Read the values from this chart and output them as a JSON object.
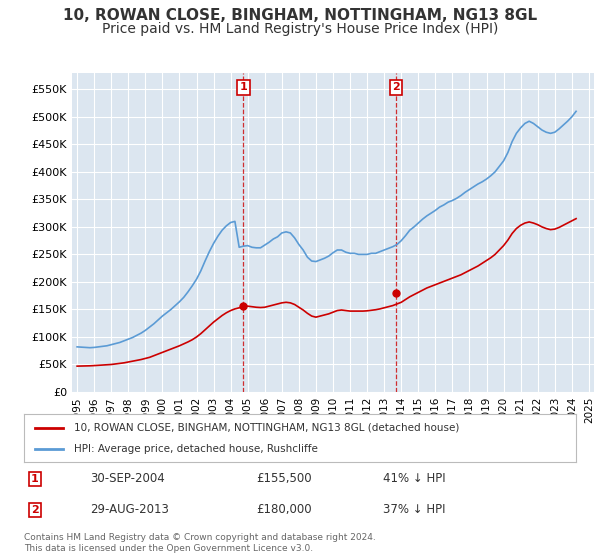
{
  "title": "10, ROWAN CLOSE, BINGHAM, NOTTINGHAM, NG13 8GL",
  "subtitle": "Price paid vs. HM Land Registry's House Price Index (HPI)",
  "title_fontsize": 11,
  "subtitle_fontsize": 10,
  "background_color": "#ffffff",
  "plot_bg_color": "#dce6f0",
  "grid_color": "#ffffff",
  "ylabel_ticks": [
    "£0",
    "£50K",
    "£100K",
    "£150K",
    "£200K",
    "£250K",
    "£300K",
    "£350K",
    "£400K",
    "£450K",
    "£500K",
    "£550K"
  ],
  "ytick_values": [
    0,
    50000,
    100000,
    150000,
    200000,
    250000,
    300000,
    350000,
    400000,
    450000,
    500000,
    550000
  ],
  "ylim": [
    0,
    580000
  ],
  "legend_entry1": "10, ROWAN CLOSE, BINGHAM, NOTTINGHAM, NG13 8GL (detached house)",
  "legend_entry2": "HPI: Average price, detached house, Rushcliffe",
  "sale1_label": "1",
  "sale1_date": "30-SEP-2004",
  "sale1_price": "£155,500",
  "sale1_pct": "41% ↓ HPI",
  "sale2_label": "2",
  "sale2_date": "29-AUG-2013",
  "sale2_price": "£180,000",
  "sale2_pct": "37% ↓ HPI",
  "footnote": "Contains HM Land Registry data © Crown copyright and database right 2024.\nThis data is licensed under the Open Government Licence v3.0.",
  "sale1_color": "#cc0000",
  "sale2_color": "#cc0000",
  "hpi_line_color": "#5b9bd5",
  "price_line_color": "#cc0000",
  "marker_box_color": "#cc0000",
  "sale1_year": 2004.75,
  "sale1_value": 155500,
  "sale2_year": 2013.67,
  "sale2_value": 180000,
  "hpi_years": [
    1995.0,
    1995.25,
    1995.5,
    1995.75,
    1996.0,
    1996.25,
    1996.5,
    1996.75,
    1997.0,
    1997.25,
    1997.5,
    1997.75,
    1998.0,
    1998.25,
    1998.5,
    1998.75,
    1999.0,
    1999.25,
    1999.5,
    1999.75,
    2000.0,
    2000.25,
    2000.5,
    2000.75,
    2001.0,
    2001.25,
    2001.5,
    2001.75,
    2002.0,
    2002.25,
    2002.5,
    2002.75,
    2003.0,
    2003.25,
    2003.5,
    2003.75,
    2004.0,
    2004.25,
    2004.5,
    2004.75,
    2005.0,
    2005.25,
    2005.5,
    2005.75,
    2006.0,
    2006.25,
    2006.5,
    2006.75,
    2007.0,
    2007.25,
    2007.5,
    2007.75,
    2008.0,
    2008.25,
    2008.5,
    2008.75,
    2009.0,
    2009.25,
    2009.5,
    2009.75,
    2010.0,
    2010.25,
    2010.5,
    2010.75,
    2011.0,
    2011.25,
    2011.5,
    2011.75,
    2012.0,
    2012.25,
    2012.5,
    2012.75,
    2013.0,
    2013.25,
    2013.5,
    2013.75,
    2014.0,
    2014.25,
    2014.5,
    2014.75,
    2015.0,
    2015.25,
    2015.5,
    2015.75,
    2016.0,
    2016.25,
    2016.5,
    2016.75,
    2017.0,
    2017.25,
    2017.5,
    2017.75,
    2018.0,
    2018.25,
    2018.5,
    2018.75,
    2019.0,
    2019.25,
    2019.5,
    2019.75,
    2020.0,
    2020.25,
    2020.5,
    2020.75,
    2021.0,
    2021.25,
    2021.5,
    2021.75,
    2022.0,
    2022.25,
    2022.5,
    2022.75,
    2023.0,
    2023.25,
    2023.5,
    2023.75,
    2024.0,
    2024.25
  ],
  "hpi_values": [
    82000,
    81500,
    81000,
    80500,
    81000,
    82000,
    83000,
    84000,
    86000,
    88000,
    90000,
    93000,
    96000,
    99000,
    103000,
    107000,
    112000,
    118000,
    124000,
    131000,
    138000,
    144000,
    150000,
    157000,
    164000,
    172000,
    182000,
    193000,
    205000,
    220000,
    238000,
    255000,
    270000,
    283000,
    294000,
    302000,
    308000,
    310000,
    263000,
    265000,
    266000,
    263000,
    262000,
    262000,
    267000,
    272000,
    278000,
    282000,
    289000,
    291000,
    289000,
    280000,
    268000,
    258000,
    245000,
    238000,
    237000,
    240000,
    243000,
    247000,
    253000,
    258000,
    258000,
    254000,
    252000,
    252000,
    250000,
    250000,
    250000,
    252000,
    252000,
    255000,
    258000,
    261000,
    264000,
    268000,
    275000,
    284000,
    294000,
    300000,
    307000,
    314000,
    320000,
    325000,
    330000,
    336000,
    340000,
    345000,
    348000,
    352000,
    357000,
    363000,
    368000,
    373000,
    378000,
    382000,
    387000,
    393000,
    400000,
    410000,
    420000,
    435000,
    455000,
    470000,
    480000,
    488000,
    492000,
    488000,
    482000,
    476000,
    472000,
    470000,
    472000,
    478000,
    485000,
    492000,
    500000,
    510000
  ],
  "price_years": [
    1995.0,
    1995.25,
    1995.5,
    1995.75,
    1996.0,
    1996.25,
    1996.5,
    1996.75,
    1997.0,
    1997.25,
    1997.5,
    1997.75,
    1998.0,
    1998.25,
    1998.5,
    1998.75,
    1999.0,
    1999.25,
    1999.5,
    1999.75,
    2000.0,
    2000.25,
    2000.5,
    2000.75,
    2001.0,
    2001.25,
    2001.5,
    2001.75,
    2002.0,
    2002.25,
    2002.5,
    2002.75,
    2003.0,
    2003.25,
    2003.5,
    2003.75,
    2004.0,
    2004.25,
    2004.5,
    2004.75,
    2005.0,
    2005.25,
    2005.5,
    2005.75,
    2006.0,
    2006.25,
    2006.5,
    2006.75,
    2007.0,
    2007.25,
    2007.5,
    2007.75,
    2008.0,
    2008.25,
    2008.5,
    2008.75,
    2009.0,
    2009.25,
    2009.5,
    2009.75,
    2010.0,
    2010.25,
    2010.5,
    2010.75,
    2011.0,
    2011.25,
    2011.5,
    2011.75,
    2012.0,
    2012.25,
    2012.5,
    2012.75,
    2013.0,
    2013.25,
    2013.5,
    2013.75,
    2014.0,
    2014.25,
    2014.5,
    2014.75,
    2015.0,
    2015.25,
    2015.5,
    2015.75,
    2016.0,
    2016.25,
    2016.5,
    2016.75,
    2017.0,
    2017.25,
    2017.5,
    2017.75,
    2018.0,
    2018.25,
    2018.5,
    2018.75,
    2019.0,
    2019.25,
    2019.5,
    2019.75,
    2020.0,
    2020.25,
    2020.5,
    2020.75,
    2021.0,
    2021.25,
    2021.5,
    2021.75,
    2022.0,
    2022.25,
    2022.5,
    2022.75,
    2023.0,
    2023.25,
    2023.5,
    2023.75,
    2024.0,
    2024.25
  ],
  "price_values": [
    47000,
    47200,
    47400,
    47600,
    48000,
    48500,
    49000,
    49500,
    50000,
    51000,
    52000,
    53000,
    54500,
    56000,
    57500,
    59000,
    61000,
    63000,
    66000,
    69000,
    72000,
    75000,
    78000,
    81000,
    84000,
    87500,
    91000,
    95000,
    100000,
    106000,
    113000,
    120000,
    127000,
    133000,
    139000,
    144000,
    148000,
    151000,
    153000,
    155500,
    156000,
    155000,
    154000,
    153500,
    154000,
    156000,
    158000,
    160000,
    162000,
    163000,
    162000,
    159000,
    154000,
    149000,
    143000,
    138000,
    136000,
    138000,
    140000,
    142000,
    145000,
    148000,
    149000,
    148000,
    147000,
    147000,
    147000,
    147000,
    147500,
    148500,
    149500,
    151000,
    153000,
    155000,
    157000,
    160000,
    163000,
    168000,
    173000,
    177000,
    181000,
    185000,
    189000,
    192000,
    195000,
    198000,
    201000,
    204000,
    207000,
    210000,
    213000,
    217000,
    221000,
    225000,
    229000,
    234000,
    239000,
    244000,
    250000,
    258000,
    266000,
    276000,
    288000,
    297000,
    303000,
    307000,
    309000,
    307000,
    304000,
    300000,
    297000,
    295000,
    296000,
    299000,
    303000,
    307000,
    311000,
    315000
  ],
  "xtick_years": [
    1995,
    1996,
    1997,
    1998,
    1999,
    2000,
    2001,
    2002,
    2003,
    2004,
    2005,
    2006,
    2007,
    2008,
    2009,
    2010,
    2011,
    2012,
    2013,
    2014,
    2015,
    2016,
    2017,
    2018,
    2019,
    2020,
    2021,
    2022,
    2023,
    2024,
    2025
  ]
}
